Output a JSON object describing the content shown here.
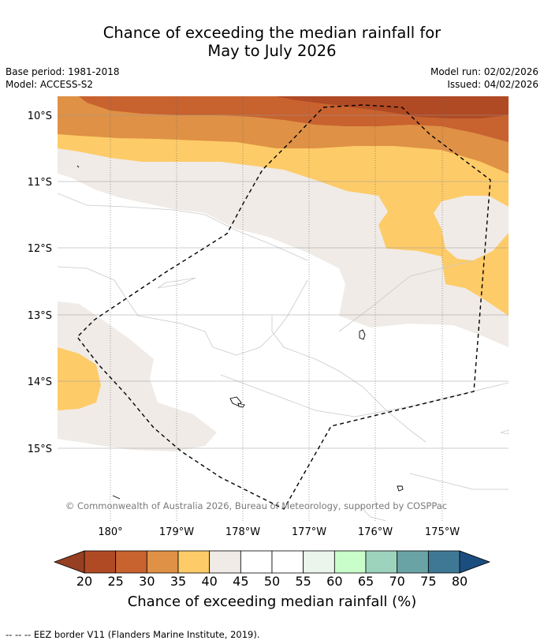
{
  "title": {
    "line1": "Chance of exceeding the median rainfall for",
    "line2": "May to July 2026"
  },
  "meta": {
    "base_period": "Base period: 1981-2018",
    "model": "Model: ACCESS-S2",
    "model_run": "Model run: 02/02/2026",
    "issued": "Issued: 04/02/2026"
  },
  "map": {
    "lat_labels": [
      "10°S",
      "11°S",
      "12°S",
      "13°S",
      "14°S",
      "15°S"
    ],
    "lon_labels": [
      "180°",
      "179°W",
      "178°W",
      "177°W",
      "176°W",
      "175°W"
    ],
    "copyright": "© Commonwealth of Australia 2026, Bureau of Meteorology, supported by COSPPac",
    "border_color": "#000000"
  },
  "colorbar": {
    "ticks": [
      "20",
      "25",
      "30",
      "35",
      "40",
      "45",
      "50",
      "55",
      "60",
      "65",
      "70",
      "75",
      "80"
    ],
    "colors": [
      "#b04a24",
      "#c8622f",
      "#df9145",
      "#fdcb68",
      "#f0ebe6",
      "#ffffff",
      "#ffffff",
      "#ebf5eb",
      "#c9fdc9",
      "#9dd2bc",
      "#6aa3a5",
      "#3f7895"
    ],
    "under_color": "#963f22",
    "over_color": "#1c4d7f",
    "label": "Chance of exceeding median rainfall (%)"
  },
  "footer": "--  --  -- EEZ border V11 (Flanders Marine Institute, 2019)."
}
